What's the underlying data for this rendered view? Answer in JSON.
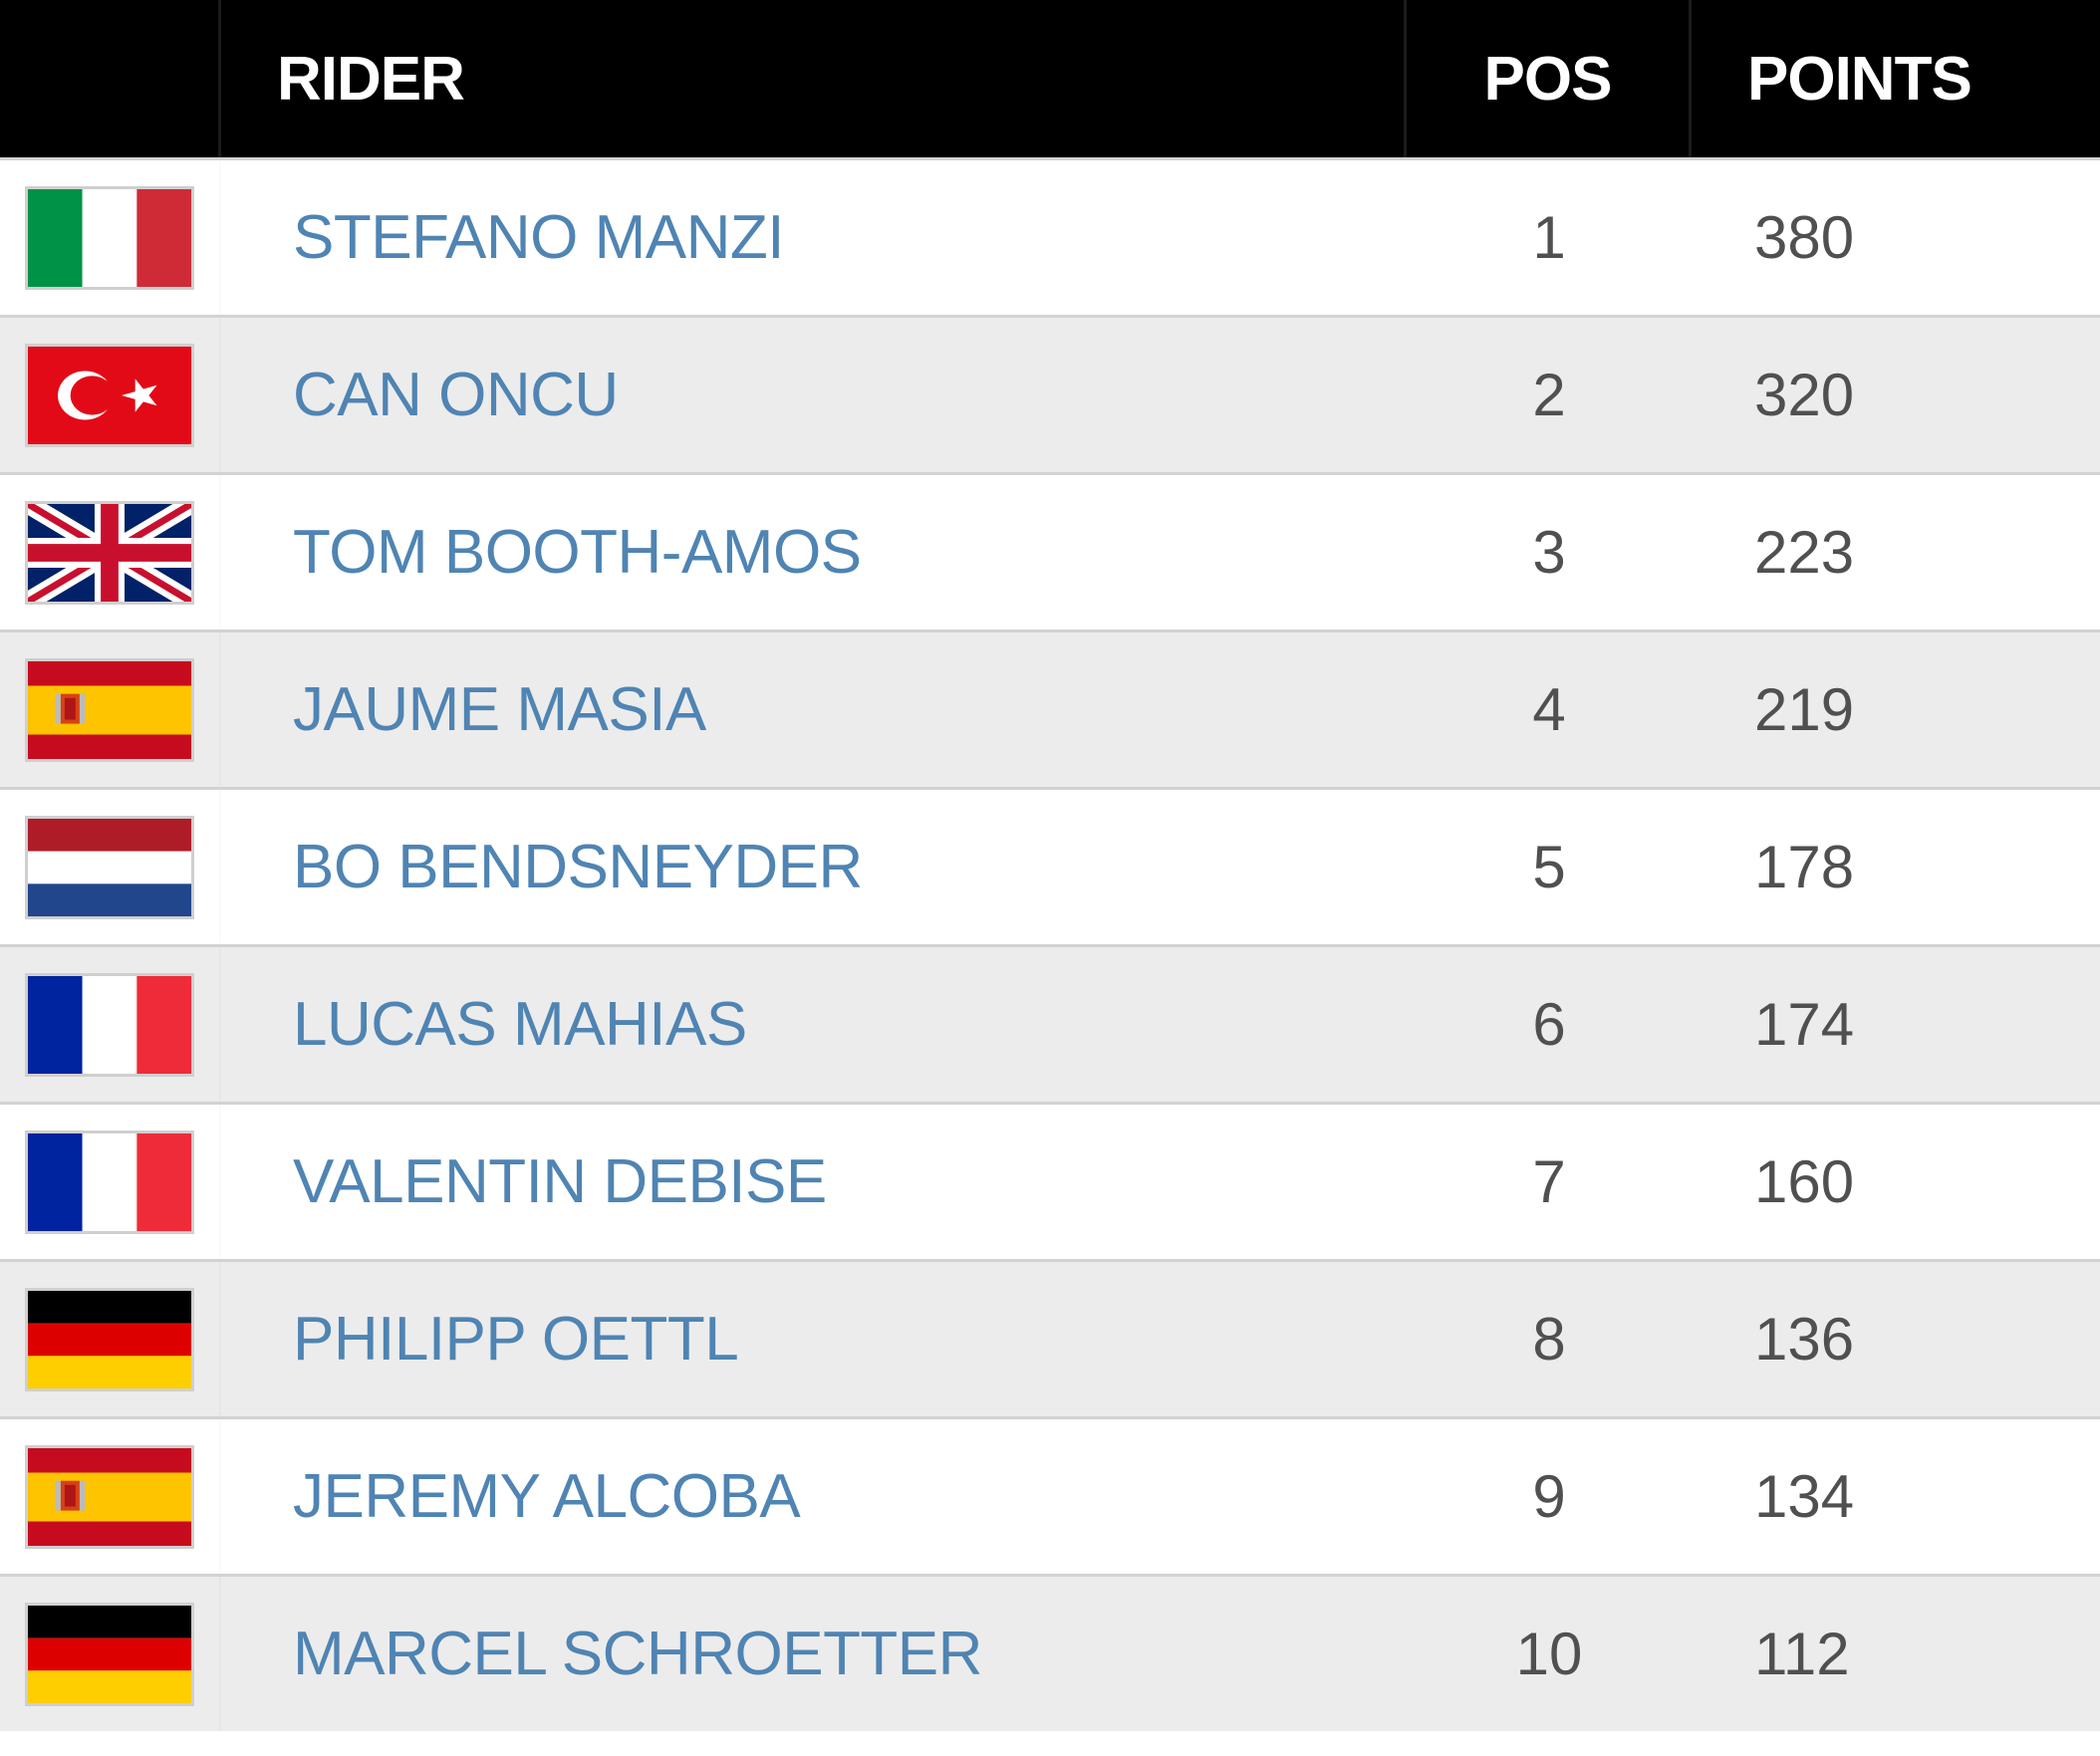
{
  "header": {
    "rider": "RIDER",
    "pos": "POS",
    "points": "POINTS"
  },
  "rows": [
    {
      "flag": "italy-flag-icon",
      "name": "STEFANO MANZI",
      "pos": "1",
      "points": "380"
    },
    {
      "flag": "turkey-flag-icon",
      "name": "CAN ONCU",
      "pos": "2",
      "points": "320"
    },
    {
      "flag": "uk-flag-icon",
      "name": "TOM BOOTH-AMOS",
      "pos": "3",
      "points": "223"
    },
    {
      "flag": "spain-flag-icon",
      "name": "JAUME MASIA",
      "pos": "4",
      "points": "219"
    },
    {
      "flag": "netherlands-flag-icon",
      "name": "BO BENDSNEYDER",
      "pos": "5",
      "points": "178"
    },
    {
      "flag": "france-flag-icon",
      "name": "LUCAS MAHIAS",
      "pos": "6",
      "points": "174"
    },
    {
      "flag": "france-flag-icon",
      "name": "VALENTIN DEBISE",
      "pos": "7",
      "points": "160"
    },
    {
      "flag": "germany-flag-icon",
      "name": "PHILIPP OETTL",
      "pos": "8",
      "points": "136"
    },
    {
      "flag": "spain-flag-icon",
      "name": "JEREMY ALCOBA",
      "pos": "9",
      "points": "134"
    },
    {
      "flag": "germany-flag-icon",
      "name": "MARCEL SCHROETTER",
      "pos": "10",
      "points": "112"
    }
  ],
  "colors": {
    "header_bg": "#000000",
    "rider_name": "#4f84b3",
    "value_text": "#505050",
    "row_alt_bg": "#ececec"
  }
}
